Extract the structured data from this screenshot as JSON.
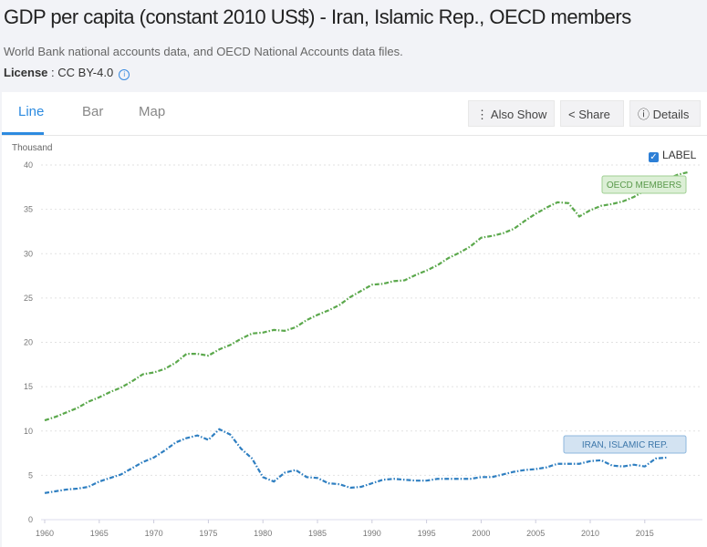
{
  "title": "GDP per capita (constant 2010 US$) - Iran, Islamic Rep., OECD members",
  "source": "World Bank national accounts data, and OECD National Accounts data files.",
  "license_label": "License",
  "license_value": " : CC BY-4.0",
  "tabs": [
    "Line",
    "Bar",
    "Map"
  ],
  "buttons": {
    "also_show": "Also Show",
    "share": "Share",
    "details": "Details"
  },
  "label_toggle": "LABEL",
  "colors": {
    "oecd": "#5ba84c",
    "iran": "#2f7fc1",
    "accent": "#2d8be0"
  },
  "chart_data": {
    "type": "line",
    "ylabel": "Thousand",
    "ylim": [
      0,
      40
    ],
    "xlim": [
      1960,
      2019
    ],
    "yticks": [
      0,
      5,
      10,
      15,
      20,
      25,
      30,
      35,
      40
    ],
    "xticks": [
      1960,
      1965,
      1970,
      1975,
      1980,
      1985,
      1990,
      1995,
      2000,
      2005,
      2010,
      2015
    ],
    "series": [
      {
        "name": "OECD MEMBERS",
        "start": 1960,
        "values": [
          11.2,
          11.6,
          12.1,
          12.6,
          13.3,
          13.8,
          14.4,
          14.9,
          15.6,
          16.4,
          16.6,
          17.0,
          17.7,
          18.7,
          18.7,
          18.5,
          19.2,
          19.7,
          20.4,
          21.0,
          21.1,
          21.4,
          21.3,
          21.7,
          22.5,
          23.1,
          23.6,
          24.2,
          25.1,
          25.8,
          26.5,
          26.6,
          26.9,
          27.0,
          27.6,
          28.1,
          28.7,
          29.5,
          30.1,
          30.8,
          31.8,
          32.0,
          32.3,
          32.8,
          33.7,
          34.5,
          35.2,
          35.8,
          35.7,
          34.2,
          34.9,
          35.4,
          35.6,
          35.9,
          36.4,
          37.1,
          37.6,
          38.4,
          38.9,
          39.2
        ]
      },
      {
        "name": "IRAN, ISLAMIC REP.",
        "start": 1960,
        "values": [
          3.0,
          3.2,
          3.4,
          3.5,
          3.7,
          4.3,
          4.7,
          5.1,
          5.8,
          6.5,
          7.0,
          7.8,
          8.7,
          9.2,
          9.5,
          9.0,
          10.2,
          9.6,
          8.0,
          6.9,
          4.8,
          4.3,
          5.3,
          5.6,
          4.8,
          4.7,
          4.1,
          4.0,
          3.6,
          3.7,
          4.1,
          4.5,
          4.6,
          4.5,
          4.4,
          4.4,
          4.6,
          4.6,
          4.6,
          4.6,
          4.8,
          4.8,
          5.1,
          5.4,
          5.6,
          5.7,
          5.9,
          6.3,
          6.3,
          6.3,
          6.6,
          6.7,
          6.1,
          6.0,
          6.2,
          6.0,
          6.9,
          7.0
        ]
      }
    ]
  }
}
